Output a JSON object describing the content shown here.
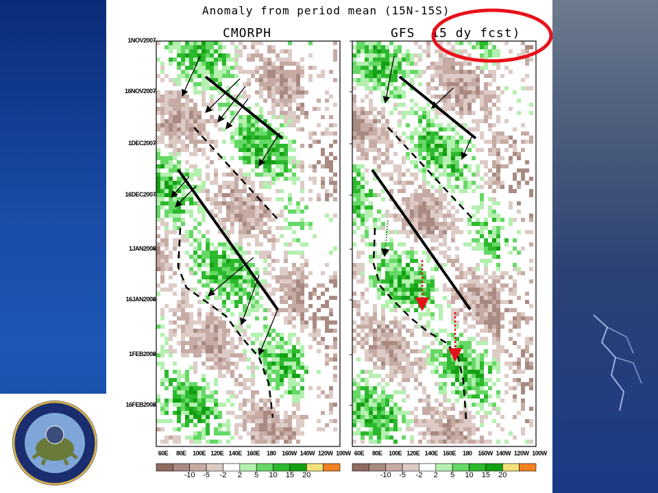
{
  "title": "Anomaly from period mean (15N-15S)",
  "chart_data": [
    {
      "type": "heatmap",
      "title": "CMORPH",
      "xlabel": "",
      "ylabel": "",
      "x_ticks": [
        "60E",
        "80E",
        "100E",
        "120E",
        "140E",
        "160E",
        "180",
        "160W",
        "140W",
        "120W",
        "100W"
      ],
      "y_ticks": [
        "1NOV2007",
        "16NOV2007",
        "1DEC2007",
        "16DEC2007",
        "1JAN2008",
        "16JAN2008",
        "1FEB2008",
        "16FEB2008"
      ],
      "grid": false
    },
    {
      "type": "heatmap",
      "title": "GFS",
      "annotation": "15 dy fcst)",
      "xlabel": "",
      "ylabel": "",
      "x_ticks": [
        "60E",
        "80E",
        "100E",
        "120E",
        "140E",
        "160E",
        "180",
        "160W",
        "140W",
        "120W",
        "100W"
      ],
      "y_ticks": [
        "1NOV2007",
        "16NOV2007",
        "1DEC2007",
        "16DEC2007",
        "1JAN2008",
        "16JAN2008",
        "1FEB2008",
        "16FEB2008"
      ],
      "grid": false
    }
  ],
  "colorbar": {
    "levels": [
      "-10",
      "-5",
      "-2",
      "2",
      "5",
      "10",
      "15",
      "20"
    ],
    "colors": [
      "#8f6b62",
      "#a88a82",
      "#c6aba4",
      "#ddcbc6",
      "#ffffff",
      "#b4f0b0",
      "#66d866",
      "#2db92d",
      "#14a014",
      "#f2e07a",
      "#f08020"
    ]
  },
  "accent_colors": {
    "highlight": "#e8101a",
    "arrow": "#000000"
  },
  "logo_icon": "cics-logo"
}
